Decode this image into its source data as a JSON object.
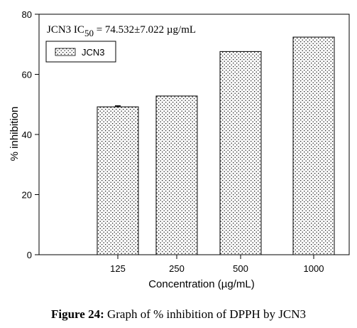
{
  "chart_data": {
    "type": "bar",
    "categories": [
      "125",
      "250",
      "500",
      "1000"
    ],
    "values": [
      49.2,
      52.8,
      67.6,
      72.4
    ],
    "errors": [
      0.3,
      0,
      0,
      0
    ],
    "xlabel": "Concentration (µg/mL)",
    "ylabel": "% inhibition",
    "ylim": [
      0,
      80
    ],
    "yticks": [
      0,
      20,
      40,
      60,
      80
    ],
    "grid": false,
    "legend": {
      "label": "JCN3",
      "position": "top-left"
    },
    "annotation": {
      "prefix": "JCN3 IC",
      "subscript": "50",
      "suffix": " = 74.532±7.022 µg/mL"
    },
    "colors": {
      "bar_fill": "#ffffff",
      "bar_pattern": "#000000",
      "axis": "#000000"
    }
  },
  "caption": {
    "label": "Figure 24:",
    "text": " Graph of % inhibition of DPPH by JCN3"
  }
}
